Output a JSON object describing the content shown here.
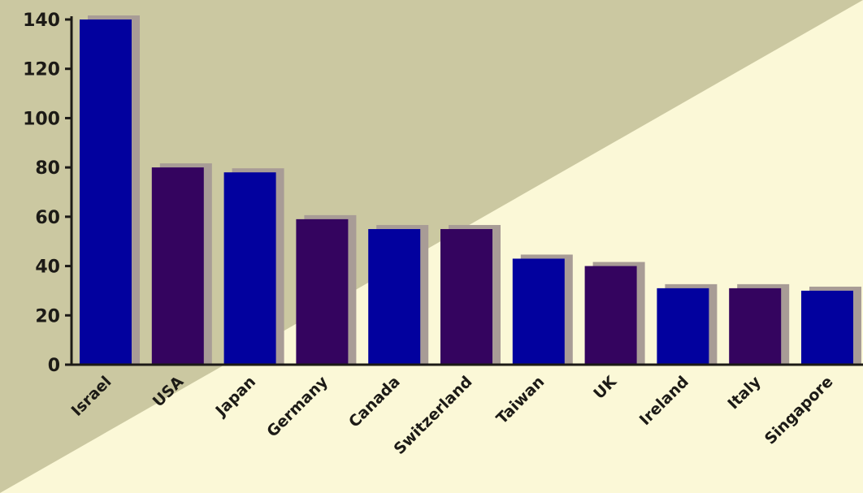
{
  "colors": {
    "background_light": "#fbf8d7",
    "background_dark": "#cbc8a1",
    "bar_blue": "#02019e",
    "bar_purple": "#34045f",
    "bar_shadow": "#a89c96",
    "axis": "#1c1a16"
  },
  "chart_data": {
    "type": "bar",
    "title": "",
    "xlabel": "",
    "ylabel": "",
    "ylim": [
      0,
      140
    ],
    "yticks": [
      0,
      20,
      40,
      60,
      80,
      100,
      120,
      140
    ],
    "grid": false,
    "legend": "none",
    "categories": [
      "Israel",
      "USA",
      "Japan",
      "Germany",
      "Canada",
      "Switzerland",
      "Taiwan",
      "UK",
      "Ireland",
      "Italy",
      "Singapore"
    ],
    "values": [
      140,
      80,
      78,
      59,
      55,
      55,
      43,
      40,
      31,
      31,
      30
    ],
    "bar_colors": [
      "#02019e",
      "#34045f",
      "#02019e",
      "#34045f",
      "#02019e",
      "#34045f",
      "#02019e",
      "#34045f",
      "#02019e",
      "#34045f",
      "#02019e"
    ]
  }
}
